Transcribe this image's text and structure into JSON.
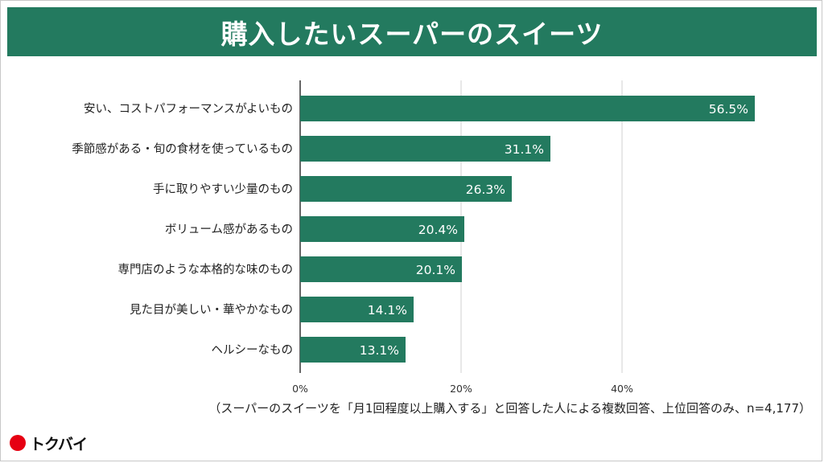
{
  "header": {
    "title": "購入したいスーパーのスイーツ"
  },
  "colors": {
    "accent": "#237a5f",
    "grid": "#d0d0d0",
    "axis": "#333333",
    "logo_red": "#e60012"
  },
  "chart_data": {
    "type": "bar",
    "orientation": "horizontal",
    "title": "購入したいスーパーのスイーツ",
    "categories": [
      "安い、コストパフォーマンスがよいもの",
      "季節感がある・旬の食材を使っているもの",
      "手に取りやすい少量のもの",
      "ボリューム感があるもの",
      "専門店のような本格的な味のもの",
      "見た目が美しい・華やかなもの",
      "ヘルシーなもの"
    ],
    "values": [
      56.5,
      31.1,
      26.3,
      20.4,
      20.1,
      14.1,
      13.1
    ],
    "value_labels": [
      "56.5%",
      "31.1%",
      "26.3%",
      "20.4%",
      "20.1%",
      "14.1%",
      "13.1%"
    ],
    "xlim": [
      0,
      60
    ],
    "xticks": [
      0,
      20,
      40
    ],
    "xtick_labels": [
      "0%",
      "20%",
      "40%"
    ],
    "grid": true,
    "xlabel": "",
    "ylabel": ""
  },
  "footnote": "（スーパーのスイーツを「月1回程度以上購入する」と回答した人による複数回答、上位回答のみ、n=4,177）",
  "logo": {
    "text": "トクバイ",
    "icon": "red-circle-icon"
  }
}
